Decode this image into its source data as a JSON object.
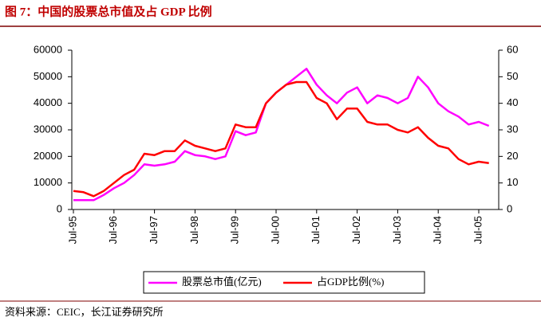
{
  "chart_data": {
    "type": "line",
    "title": "图 7：中国的股票总市值及占 GDP 比例",
    "source": "资料来源：CEIC，长江证券研究所",
    "categories": [
      "Jul-95",
      null,
      null,
      null,
      "Jul-96",
      null,
      null,
      null,
      "Jul-97",
      null,
      null,
      null,
      "Jul-98",
      null,
      null,
      null,
      "Jul-99",
      null,
      null,
      null,
      "Jul-00",
      null,
      null,
      null,
      "Jul-01",
      null,
      null,
      null,
      "Jul-02",
      null,
      null,
      null,
      "Jul-03",
      null,
      null,
      null,
      "Jul-04",
      null,
      null,
      null,
      "Jul-05",
      null
    ],
    "series": [
      {
        "name": "股票总市值(亿元)",
        "color": "#ff00ff",
        "axis": "y",
        "values": [
          3500,
          3500,
          3500,
          5500,
          8000,
          10000,
          13000,
          17000,
          16500,
          17000,
          18000,
          22000,
          20500,
          20000,
          19000,
          20000,
          29500,
          28000,
          29000,
          40000,
          44000,
          47000,
          50000,
          53000,
          47000,
          43000,
          40000,
          44000,
          46000,
          40000,
          43000,
          42000,
          40000,
          42000,
          50000,
          46000,
          40000,
          37000,
          35000,
          32000,
          33000,
          31500
        ]
      },
      {
        "name": "占GDP比例(%)",
        "color": "#ff0000",
        "axis": "y2",
        "values": [
          7,
          6.5,
          5,
          7,
          10,
          13,
          15,
          21,
          20.5,
          22,
          22,
          26,
          24,
          23,
          22,
          23,
          32,
          31,
          31,
          40,
          44,
          47,
          48,
          48,
          42,
          40,
          34,
          38,
          38,
          33,
          32,
          32,
          30,
          29,
          31,
          27,
          24,
          23,
          19,
          17,
          18,
          17.5
        ]
      }
    ],
    "ylim": [
      0,
      60000
    ],
    "yticks": [
      0,
      10000,
      20000,
      30000,
      40000,
      50000,
      60000
    ],
    "y2lim": [
      0,
      60
    ],
    "y2ticks": [
      0,
      10,
      20,
      30,
      40,
      50,
      60
    ]
  }
}
